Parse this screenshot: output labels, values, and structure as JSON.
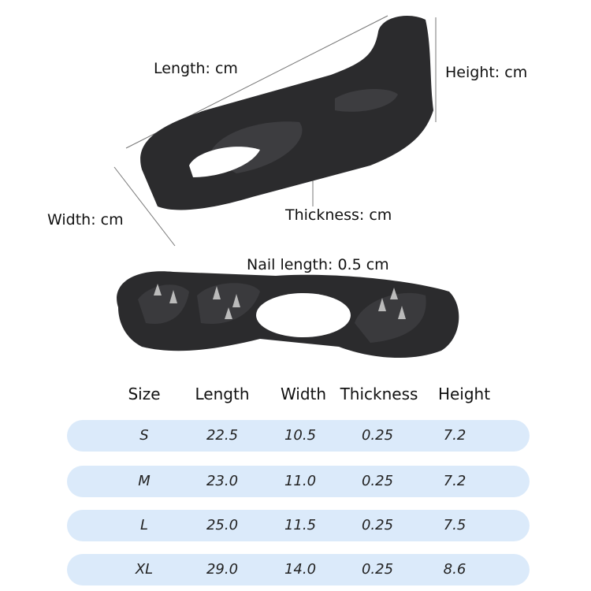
{
  "labels": {
    "length": "Length: cm",
    "height": "Height: cm",
    "width": "Width: cm",
    "thickness": "Thickness: cm",
    "nail_length": "Nail length: 0.5 cm"
  },
  "table": {
    "headers": [
      "Size",
      "Length",
      "Width",
      "Thickness",
      "Height"
    ],
    "rows": [
      [
        "S",
        "22.5",
        "10.5",
        "0.25",
        "7.2"
      ],
      [
        "M",
        "23.0",
        "11.0",
        "0.25",
        "7.2"
      ],
      [
        "L",
        "25.0",
        "11.5",
        "0.25",
        "7.5"
      ],
      [
        "XL",
        "29.0",
        "14.0",
        "0.25",
        "8.6"
      ]
    ],
    "row_color": "#dbeafa"
  },
  "colors": {
    "product": "#2b2b2d"
  }
}
